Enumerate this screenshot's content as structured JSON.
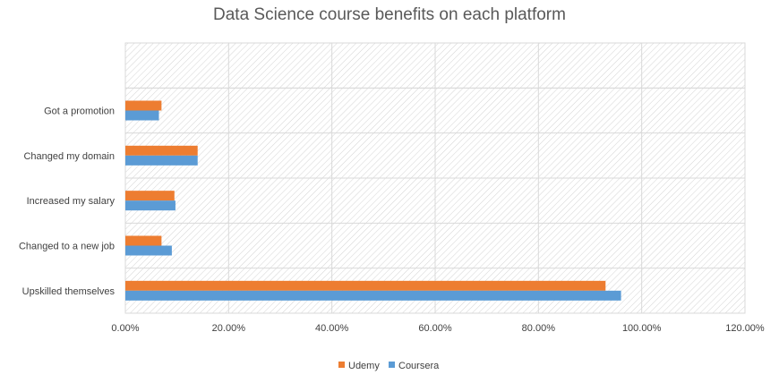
{
  "chart_data": {
    "type": "bar",
    "orientation": "horizontal",
    "title": "Data Science course benefits on each platform",
    "categories": [
      "Upskilled themselves",
      "Changed to a new job",
      "Increased my salary",
      "Changed my domain",
      "Got a promotion"
    ],
    "series": [
      {
        "name": "Udemy",
        "color": "#ED7D31",
        "values": [
          0.93,
          0.07,
          0.095,
          0.14,
          0.07
        ]
      },
      {
        "name": "Coursera",
        "color": "#5B9BD5",
        "values": [
          0.96,
          0.09,
          0.097,
          0.14,
          0.065
        ]
      }
    ],
    "xlim": [
      0,
      1.2
    ],
    "x_ticks": [
      "0.00%",
      "20.00%",
      "40.00%",
      "60.00%",
      "80.00%",
      "100.00%",
      "120.00%"
    ],
    "legend_position": "bottom",
    "grid": true
  }
}
